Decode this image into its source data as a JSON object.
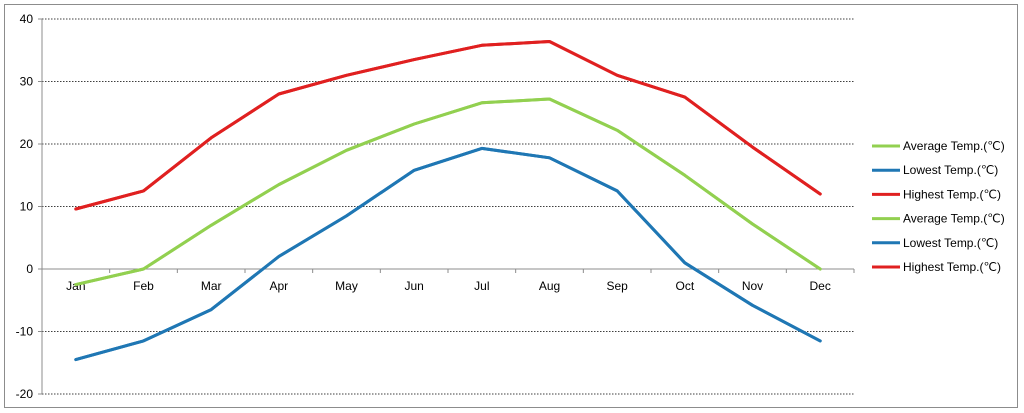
{
  "chart_data": {
    "type": "line",
    "categories": [
      "Jan",
      "Feb",
      "Mar",
      "Apr",
      "May",
      "Jun",
      "Jul",
      "Aug",
      "Sep",
      "Oct",
      "Nov",
      "Dec"
    ],
    "ylim": [
      -20,
      40
    ],
    "yticks": [
      -20,
      -10,
      0,
      10,
      20,
      30,
      40
    ],
    "grid": true,
    "legend_position": "right",
    "series": [
      {
        "name": "Average Temp.(℃)",
        "color": "#92d050",
        "values": [
          -2.5,
          0,
          7,
          13.5,
          19,
          23.2,
          26.6,
          27.2,
          22.2,
          15,
          7.2,
          0
        ]
      },
      {
        "name": "Lowest Temp.(℃)",
        "color": "#1f77b4",
        "values": [
          -14.5,
          -11.5,
          -6.5,
          2,
          8.5,
          15.8,
          19.3,
          17.8,
          12.5,
          1,
          -5.8,
          -11.5
        ]
      },
      {
        "name": "Highest Temp.(℃)",
        "color": "#e02020",
        "values": [
          9.6,
          12.5,
          21,
          28,
          31,
          33.5,
          35.8,
          36.4,
          31,
          27.5,
          19.5,
          12
        ]
      },
      {
        "name": "Average Temp.(℃)",
        "color": "#92d050",
        "values": [
          -2.5,
          0,
          7,
          13.5,
          19,
          23.2,
          26.6,
          27.2,
          22.2,
          15,
          7.2,
          0
        ]
      },
      {
        "name": "Lowest Temp.(℃)",
        "color": "#1f77b4",
        "values": [
          -14.5,
          -11.5,
          -6.5,
          2,
          8.5,
          15.8,
          19.3,
          17.8,
          12.5,
          1,
          -5.8,
          -11.5
        ]
      },
      {
        "name": "Highest Temp.(℃)",
        "color": "#e02020",
        "values": [
          9.6,
          12.5,
          21,
          28,
          31,
          33.5,
          35.8,
          36.4,
          31,
          27.5,
          19.5,
          12
        ]
      }
    ]
  }
}
